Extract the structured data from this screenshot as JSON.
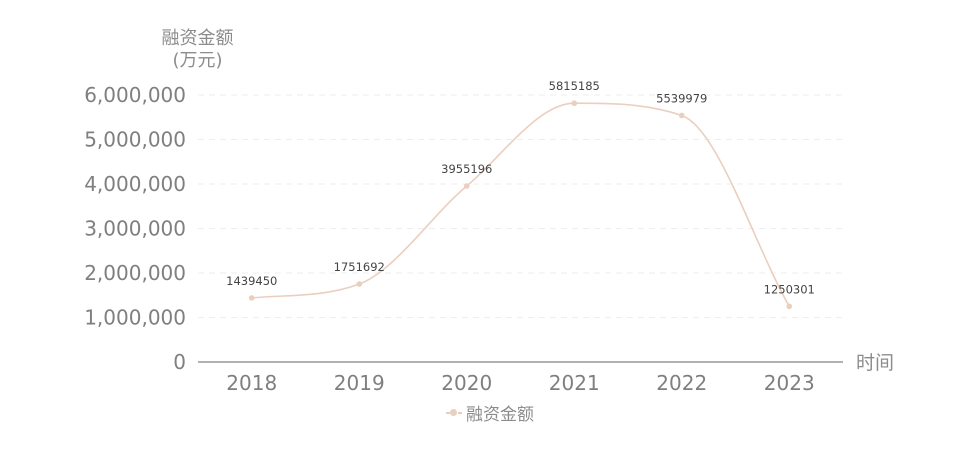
{
  "colors": {
    "series": "#eacfbf",
    "axis": "#999999",
    "grid": "#eeeeee",
    "tick_text": "#7f7f7f",
    "label_text": "#444444"
  },
  "chart_data": {
    "type": "line",
    "smooth": true,
    "title": "",
    "ylabel_line1": "融资金额",
    "ylabel_line2": "(万元)",
    "xlabel": "时间",
    "categories": [
      "2018",
      "2019",
      "2020",
      "2021",
      "2022",
      "2023"
    ],
    "series": [
      {
        "name": "融资金额",
        "values": [
          1439450,
          1751692,
          3955196,
          5815185,
          5539979,
          1250301
        ]
      }
    ],
    "ylim": [
      0,
      6000000
    ],
    "yticks": [
      0,
      1000000,
      2000000,
      3000000,
      4000000,
      5000000,
      6000000
    ],
    "ytick_labels": [
      "0",
      "1,000,000",
      "2,000,000",
      "3,000,000",
      "4,000,000",
      "5,000,000",
      "6,000,000"
    ],
    "grid": "dashed-horizontal",
    "legend_position": "bottom-center",
    "data_labels": true
  }
}
